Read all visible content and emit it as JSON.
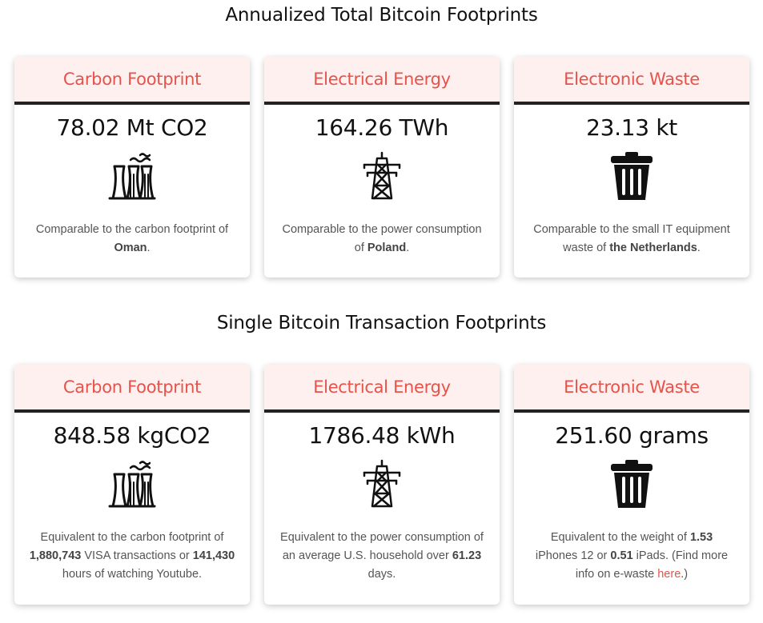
{
  "annual": {
    "title": "Annualized Total Bitcoin Footprints",
    "cards": [
      {
        "heading": "Carbon Footprint",
        "value": "78.02 Mt CO2",
        "icon": "factory-icon",
        "desc_pre": "Comparable to the carbon footprint of ",
        "desc_b1": "Oman",
        "desc_post": "."
      },
      {
        "heading": "Electrical Energy",
        "value": "164.26 TWh",
        "icon": "power-tower-icon",
        "desc_pre": "Comparable to the power consumption of ",
        "desc_b1": "Poland",
        "desc_post": "."
      },
      {
        "heading": "Electronic Waste",
        "value": "23.13 kt",
        "icon": "trash-can-icon",
        "desc_pre": "Comparable to the small IT equipment waste of ",
        "desc_b1": "the Netherlands",
        "desc_post": "."
      }
    ]
  },
  "single": {
    "title": "Single Bitcoin Transaction Footprints",
    "cards": [
      {
        "heading": "Carbon Footprint",
        "value": "848.58 kgCO2",
        "icon": "factory-icon",
        "desc_pre": "Equivalent to the carbon footprint of ",
        "desc_b1": "1,880,743",
        "desc_mid": " VISA transactions or ",
        "desc_b2": "141,430",
        "desc_post": " hours of watching Youtube."
      },
      {
        "heading": "Electrical Energy",
        "value": "1786.48 kWh",
        "icon": "power-tower-icon",
        "desc_pre": "Equivalent to the power consumption of an average U.S. household over ",
        "desc_b1": "61.23",
        "desc_post": " days."
      },
      {
        "heading": "Electronic Waste",
        "value": "251.60 grams",
        "icon": "trash-can-icon",
        "desc_pre": "Equivalent to the weight of ",
        "desc_b1": "1.53",
        "desc_mid": " iPhones 12 or ",
        "desc_b2": "0.51",
        "desc_mid2": " iPads. (Find more info on e-waste ",
        "link": "here",
        "desc_post": ".)"
      }
    ]
  },
  "colors": {
    "accent": "#e5534b",
    "header_bg": "#fdf0ef",
    "divider": "#222222"
  }
}
